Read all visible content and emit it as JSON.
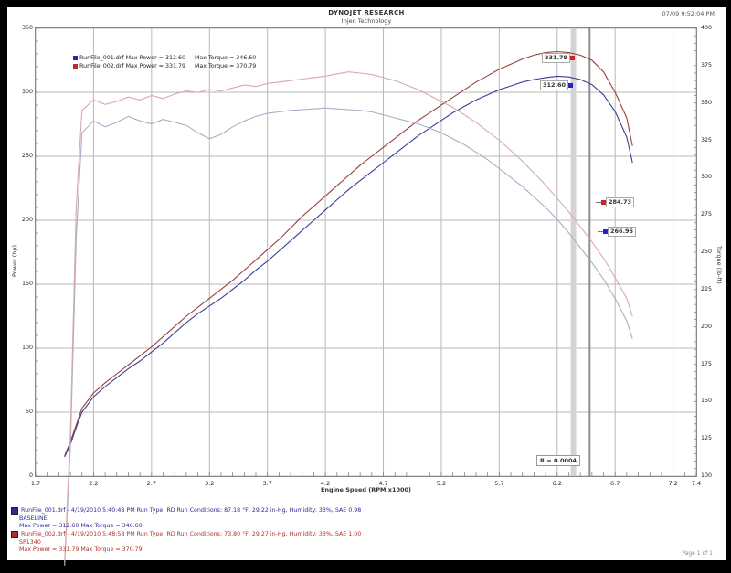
{
  "header": {
    "title_line1": "DYNOJET RESEARCH",
    "title_line2": "Injen Technology",
    "timestamp": "07/09 9:52:04 PM"
  },
  "legend": {
    "rows": [
      {
        "file": "RunFile_001.drf",
        "power": "Max Power = 312.60",
        "torque": "Max Torque = 346.60",
        "color": "#2a2a9a"
      },
      {
        "file": "RunFile_002.drf",
        "power": "Max Power = 331.79",
        "torque": "Max Torque = 370.79",
        "color": "#b03028"
      }
    ]
  },
  "callouts": {
    "power_red": "331.79",
    "power_blue": "312.60",
    "torque_red": "284.73",
    "torque_blue": "266.95"
  },
  "annotation": "R = 0.0004",
  "axes": {
    "x": {
      "label": "Engine Speed (RPM x1000)",
      "ticks": [
        1.7,
        2.2,
        2.7,
        3.2,
        3.7,
        4.2,
        4.7,
        5.2,
        5.7,
        6.2,
        6.7,
        7.2,
        7.4
      ],
      "range": [
        1.7,
        7.4
      ]
    },
    "power": {
      "label": "Power (hp)",
      "ticks": [
        350,
        300,
        250,
        200,
        150,
        100,
        50,
        0
      ],
      "range": [
        0,
        350
      ]
    },
    "torque": {
      "label": "Torque (lb-ft)",
      "ticks": [
        400,
        375,
        350,
        325,
        300,
        275,
        250,
        225,
        200,
        175,
        150,
        125,
        100
      ],
      "range": [
        100,
        400
      ]
    }
  },
  "footer": {
    "runs": [
      {
        "line1": "RunFile_001.drf - 4/19/2010 5:40:48 PM  Run Type: RD  Run Conditions: 87.18 °F, 29.22 in-Hg, Humidity:  33%, SAE 0.98",
        "note": "BASELINE",
        "stats": "Max Power = 312.60  Max Torque = 346.60",
        "color": "#2a2a9a"
      },
      {
        "line1": "RunFile_002.drf - 4/19/2010 5:48:58 PM  Run Type: RD  Run Conditions: 73.80 °F, 29.27 in-Hg, Humidity:  33%, SAE 1.00",
        "note": "SP1340",
        "stats": "Max Power = 331.79  Max Torque = 370.79",
        "color": "#b03028"
      }
    ],
    "page": "Page 1 of 1"
  },
  "chart_data": {
    "type": "line",
    "title": "Dyno run comparison - power and torque vs engine speed",
    "xlabel": "Engine Speed (RPM x1000)",
    "x_range": [
      1.7,
      7.4
    ],
    "power_range": [
      0,
      350
    ],
    "torque_range": [
      100,
      400
    ],
    "grid": true,
    "cursors_rpm": [
      6.34,
      6.48
    ],
    "x": [
      1.95,
      2.0,
      2.05,
      2.1,
      2.2,
      2.3,
      2.4,
      2.5,
      2.6,
      2.7,
      2.8,
      2.9,
      3.0,
      3.1,
      3.2,
      3.3,
      3.4,
      3.5,
      3.6,
      3.7,
      3.8,
      3.9,
      4.0,
      4.1,
      4.2,
      4.3,
      4.4,
      4.5,
      4.6,
      4.7,
      4.8,
      4.9,
      5.0,
      5.1,
      5.2,
      5.3,
      5.4,
      5.5,
      5.6,
      5.7,
      5.8,
      5.9,
      6.0,
      6.1,
      6.2,
      6.3,
      6.4,
      6.5,
      6.6,
      6.7,
      6.8,
      6.85
    ],
    "series": [
      {
        "name": "RunFile_001 Power (BASELINE)",
        "axis": "power",
        "color": "#3c3c96",
        "values": [
          15,
          25,
          38,
          50,
          62,
          70,
          77,
          84,
          90,
          97,
          104,
          112,
          120,
          127,
          133,
          139,
          146,
          153,
          161,
          168,
          176,
          184,
          192,
          200,
          208,
          216,
          224,
          231,
          238,
          245,
          252,
          259,
          266,
          272,
          278,
          284,
          289,
          294,
          298,
          302,
          305,
          308,
          310,
          311.5,
          312.6,
          312,
          310,
          306,
          298,
          285,
          265,
          245
        ],
        "max": 312.6
      },
      {
        "name": "RunFile_002 Power (SP1340)",
        "axis": "power",
        "color": "#96403c",
        "values": [
          16,
          27,
          40,
          53,
          65,
          73,
          80,
          87,
          94,
          101,
          109,
          117,
          125,
          132,
          139,
          146,
          153,
          161,
          169,
          177,
          185,
          194,
          203,
          211,
          219,
          227,
          235,
          243,
          250,
          257,
          264,
          271,
          278,
          284,
          290,
          296,
          302,
          308,
          313,
          318,
          322,
          326,
          329,
          331,
          331.8,
          331,
          329,
          325,
          316,
          300,
          280,
          258
        ],
        "max": 331.79
      },
      {
        "name": "RunFile_001 Torque (BASELINE)",
        "axis": "torque",
        "color": "#a8aec6",
        "values": [
          40,
          120,
          260,
          330,
          338,
          334,
          337,
          341,
          338,
          336,
          339,
          337,
          335,
          330,
          326,
          329,
          334,
          338,
          341,
          343,
          344,
          345,
          345.5,
          346,
          346.6,
          346,
          345.5,
          345,
          344,
          342,
          340,
          338,
          336,
          333,
          330,
          326,
          322,
          317,
          312,
          306,
          300,
          294,
          287,
          280,
          272,
          263,
          253,
          243,
          232,
          219,
          204,
          192
        ],
        "max": 346.6
      },
      {
        "name": "RunFile_002 Torque (SP1340)",
        "axis": "torque",
        "color": "#d8aaa8",
        "values": [
          42,
          130,
          280,
          345,
          352,
          349,
          351,
          354,
          352,
          355,
          353,
          356,
          358,
          357,
          359,
          358,
          360,
          362,
          361,
          363,
          364,
          365,
          366,
          367,
          368,
          369.5,
          370.8,
          370,
          369,
          367,
          365,
          362,
          359,
          355,
          351,
          347,
          342,
          337,
          331,
          325,
          318,
          311,
          303,
          295,
          286,
          277,
          267,
          257,
          246,
          233,
          219,
          207
        ],
        "max": 370.79
      }
    ]
  }
}
